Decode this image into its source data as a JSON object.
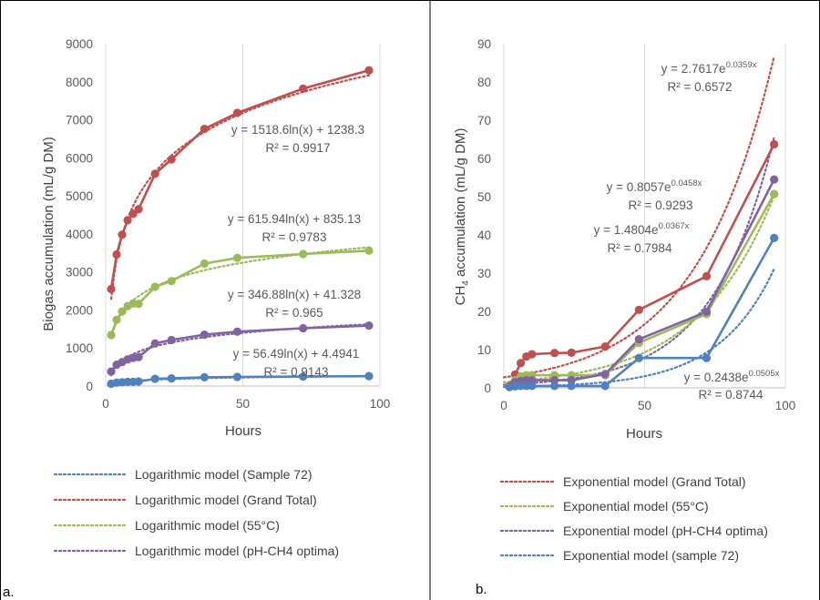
{
  "panels": [
    {
      "panel_label": "a.",
      "chart_data": {
        "type": "scatter",
        "xlabel": "Hours",
        "ylabel": "Biogas accumulation (mL/g DM)",
        "xlim": [
          0,
          100
        ],
        "ylim": [
          0,
          9000
        ],
        "xticks": [
          0,
          50,
          100
        ],
        "yticks": [
          0,
          1000,
          2000,
          3000,
          4000,
          5000,
          6000,
          7000,
          8000,
          9000
        ],
        "grid": "vertical",
        "legend_position": "bottom",
        "series": [
          {
            "key": "grand",
            "color": "#c0504d",
            "x": [
              2,
              4,
              6,
              8,
              10,
              12,
              18,
              24,
              36,
              48,
              72,
              96
            ],
            "y": [
              2550,
              3460,
              3980,
              4360,
              4530,
              4650,
              5580,
              5960,
              6760,
              7180,
              7820,
              8300
            ]
          },
          {
            "key": "c55",
            "color": "#9bbb59",
            "x": [
              2,
              4,
              6,
              8,
              10,
              12,
              18,
              24,
              36,
              48,
              72,
              96
            ],
            "y": [
              1340,
              1740,
              1960,
              2100,
              2170,
              2160,
              2610,
              2760,
              3220,
              3370,
              3470,
              3560
            ]
          },
          {
            "key": "ph",
            "color": "#8064a2",
            "x": [
              2,
              4,
              6,
              8,
              10,
              12,
              18,
              24,
              36,
              48,
              72,
              96
            ],
            "y": [
              380,
              560,
              630,
              700,
              740,
              760,
              1120,
              1210,
              1350,
              1430,
              1520,
              1590
            ]
          },
          {
            "key": "s72",
            "color": "#4f81bd",
            "x": [
              2,
              4,
              6,
              8,
              10,
              12,
              18,
              24,
              36,
              48,
              72,
              96
            ],
            "y": [
              60,
              90,
              100,
              110,
              110,
              120,
              190,
              200,
              230,
              240,
              250,
              260
            ]
          }
        ],
        "trendlines": [
          {
            "series": "grand",
            "model": "log",
            "a": 1518.6,
            "b": 1238.3,
            "x_range": [
              2,
              96
            ],
            "equation": "y = 1518.6ln(x) + 1238.3",
            "r2": "R² = 0.9917"
          },
          {
            "series": "c55",
            "model": "log",
            "a": 615.94,
            "b": 835.13,
            "x_range": [
              2,
              96
            ],
            "equation": "y = 615.94ln(x) + 835.13",
            "r2": "R² = 0.9783"
          },
          {
            "series": "ph",
            "model": "log",
            "a": 346.88,
            "b": 41.328,
            "x_range": [
              2,
              96
            ],
            "equation": "y = 346.88ln(x) + 41.328",
            "r2": "R² = 0.965"
          },
          {
            "series": "s72",
            "model": "log",
            "a": 56.49,
            "b": 4.4941,
            "x_range": [
              2,
              96
            ],
            "equation": "y = 56.49ln(x) + 4.4941",
            "r2": "R² = 0.9143"
          }
        ],
        "legend": [
          {
            "label": "Logarithmic model (Sample 72)",
            "color": "#4f81bd"
          },
          {
            "label": "Logarithmic model (Grand Total)",
            "color": "#c0504d"
          },
          {
            "label": "Logarithmic model (55°C)",
            "color": "#9bbb59"
          },
          {
            "label": "Logarithmic model (pH-CH4 optima)",
            "color": "#8064a2"
          }
        ]
      }
    },
    {
      "panel_label": "b.",
      "chart_data": {
        "type": "scatter",
        "xlabel": "Hours",
        "ylabel_main": "CH",
        "ylabel_sub": "4",
        "ylabel_rest": "  accumulation (mL/g DM)",
        "xlim": [
          0,
          100
        ],
        "ylim": [
          0,
          90
        ],
        "xticks": [
          0,
          50,
          100
        ],
        "yticks": [
          0,
          10,
          20,
          30,
          40,
          50,
          60,
          70,
          80,
          90
        ],
        "grid": "vertical",
        "legend_position": "bottom",
        "series": [
          {
            "key": "grand",
            "color": "#c0504d",
            "x": [
              2,
              4,
              6,
              8,
              10,
              18,
              24,
              36,
              48,
              72,
              96
            ],
            "y": [
              0.5,
              3.5,
              6.5,
              8.2,
              8.8,
              9.1,
              9.2,
              10.8,
              20.4,
              29.2,
              63.7
            ]
          },
          {
            "key": "c55",
            "color": "#9bbb59",
            "x": [
              2,
              4,
              6,
              8,
              10,
              18,
              24,
              36,
              48,
              72,
              96
            ],
            "y": [
              0.3,
              2.0,
              3.0,
              3.3,
              3.3,
              3.3,
              3.3,
              3.3,
              11.8,
              19.3,
              50.7
            ]
          },
          {
            "key": "ph",
            "color": "#8064a2",
            "x": [
              2,
              4,
              6,
              8,
              10,
              18,
              24,
              36,
              48,
              72,
              96
            ],
            "y": [
              0.3,
              1.5,
              1.8,
              2.0,
              2.0,
              2.0,
              2.0,
              3.6,
              12.7,
              19.9,
              54.5
            ]
          },
          {
            "key": "s72",
            "color": "#4f81bd",
            "x": [
              2,
              4,
              6,
              8,
              10,
              18,
              24,
              36,
              48,
              72,
              96
            ],
            "y": [
              0.2,
              0.4,
              0.5,
              0.5,
              0.5,
              0.5,
              0.5,
              0.5,
              7.8,
              7.8,
              39.2
            ]
          }
        ],
        "trendlines": [
          {
            "series": "grand",
            "model": "exp",
            "a": 2.7617,
            "b": 0.0359,
            "x_range": [
              0,
              96
            ],
            "eq_base": "y = 2.7617e",
            "eq_exp": "0.0359x",
            "r2": "R² = 0.6572"
          },
          {
            "series": "ph",
            "model": "exp",
            "a": 0.8057,
            "b": 0.0458,
            "x_range": [
              0,
              96
            ],
            "eq_base": "y = 0.8057e",
            "eq_exp": "0.0458x",
            "r2": "R² = 0.9293"
          },
          {
            "series": "c55",
            "model": "exp",
            "a": 1.4804,
            "b": 0.0367,
            "x_range": [
              0,
              96
            ],
            "eq_base": "y = 1.4804e",
            "eq_exp": "0.0367x",
            "r2": "R² = 0.7984"
          },
          {
            "series": "s72",
            "model": "exp",
            "a": 0.2438,
            "b": 0.0505,
            "x_range": [
              0,
              96
            ],
            "eq_base": "y = 0.2438e",
            "eq_exp": "0.0505x",
            "r2": "R² = 0.8744"
          }
        ],
        "legend": [
          {
            "label": "Exponential model (Grand Total)",
            "color": "#c0504d"
          },
          {
            "label": "Exponential model (55°C)",
            "color": "#9bbb59"
          },
          {
            "label": "Exponential model (pH-CH4 optima)",
            "color": "#8064a2"
          },
          {
            "label": "Exponential model (sample 72)",
            "color": "#4f81bd"
          }
        ]
      }
    }
  ]
}
